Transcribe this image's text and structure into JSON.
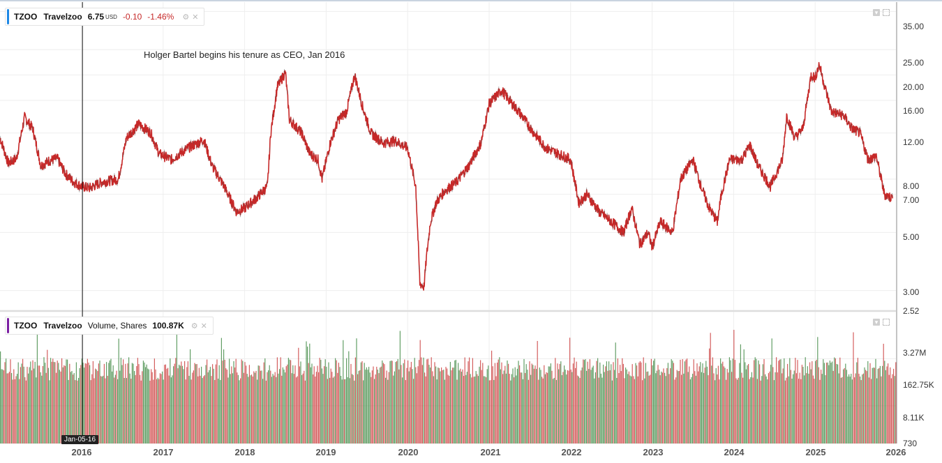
{
  "price_legend": {
    "symbol": "TZOO",
    "name": "Travelzoo",
    "value": "6.75",
    "unit": "USD",
    "change": "-0.10",
    "change_pct": "-1.46%",
    "accent": "#1e88e5"
  },
  "volume_legend": {
    "symbol": "TZOO",
    "name": "Travelzoo",
    "label": "Volume, Shares",
    "value": "100.87K",
    "accent": "#7b1fa2"
  },
  "annotation": "Holger Bartel begins his tenure as CEO, Jan 2016",
  "crosshair_date": "Jan-05-16",
  "colors": {
    "up": "#2e7d32",
    "down": "#c62828",
    "grid": "#eeeeee",
    "axis": "#888888"
  },
  "chart_data": [
    {
      "type": "line",
      "title": "TZOO Travelzoo",
      "y_scale": "log",
      "ylim": [
        2.52,
        38
      ],
      "y_ticks": [
        "35.00",
        "25.00",
        "20.00",
        "16.00",
        "12.00",
        "8.00",
        "7.00",
        "5.00",
        "3.00",
        "2.52"
      ],
      "x_ticks": [
        "2016",
        "2017",
        "2018",
        "2019",
        "2020",
        "2021",
        "2022",
        "2023",
        "2024",
        "2025",
        "2026"
      ],
      "series": [
        {
          "x": [
            2015.0,
            2015.1,
            2015.2,
            2015.3,
            2015.4,
            2015.5,
            2015.6,
            2015.7,
            2015.8,
            2015.9,
            2016.0,
            2016.1,
            2016.25,
            2016.45,
            2016.55,
            2016.7,
            2016.85,
            2016.95,
            2017.1,
            2017.3,
            2017.5,
            2017.6,
            2017.75,
            2017.9,
            2018.0,
            2018.15,
            2018.28,
            2018.32,
            2018.4,
            2018.5,
            2018.55,
            2018.7,
            2018.8,
            2018.9,
            2018.95,
            2019.05,
            2019.15,
            2019.25,
            2019.35,
            2019.45,
            2019.55,
            2019.7,
            2019.85,
            2020.0,
            2020.1,
            2020.15,
            2020.2,
            2020.23,
            2020.28,
            2020.35,
            2020.45,
            2020.6,
            2020.75,
            2020.9,
            2021.0,
            2021.15,
            2021.25,
            2021.4,
            2021.55,
            2021.7,
            2021.85,
            2022.0,
            2022.1,
            2022.2,
            2022.35,
            2022.5,
            2022.65,
            2022.75,
            2022.85,
            2022.95,
            2023.0,
            2023.1,
            2023.25,
            2023.35,
            2023.5,
            2023.6,
            2023.7,
            2023.8,
            2023.85,
            2023.95,
            2024.1,
            2024.2,
            2024.3,
            2024.45,
            2024.6,
            2024.65,
            2024.75,
            2024.85,
            2024.95,
            2025.0,
            2025.05,
            2025.1,
            2025.2,
            2025.35,
            2025.45,
            2025.55,
            2025.65,
            2025.75,
            2025.85,
            2025.95
          ],
          "y": [
            11.5,
            9.2,
            9.6,
            13.8,
            12.5,
            9.0,
            9.4,
            9.6,
            8.4,
            7.8,
            7.5,
            7.4,
            7.8,
            8.0,
            11.5,
            13.0,
            12.0,
            10.0,
            9.5,
            10.5,
            11.3,
            9.0,
            7.5,
            6.0,
            6.2,
            6.8,
            7.5,
            12.0,
            18.0,
            20.5,
            13.5,
            12.0,
            10.0,
            9.5,
            8.0,
            11.0,
            13.5,
            14.5,
            20.0,
            15.0,
            12.0,
            11.0,
            11.2,
            10.5,
            7.5,
            3.2,
            3.1,
            4.0,
            5.5,
            6.5,
            7.2,
            7.8,
            9.0,
            11.0,
            15.5,
            17.5,
            16.0,
            14.0,
            12.0,
            10.5,
            10.0,
            9.5,
            6.5,
            7.0,
            6.0,
            5.5,
            5.0,
            6.2,
            4.5,
            5.0,
            4.4,
            5.5,
            5.0,
            8.0,
            9.5,
            7.5,
            6.2,
            5.5,
            7.0,
            9.5,
            9.5,
            10.8,
            9.0,
            7.5,
            9.5,
            14.0,
            11.5,
            12.5,
            20.0,
            19.5,
            22.0,
            19.0,
            14.5,
            14.0,
            12.5,
            12.0,
            9.5,
            9.8,
            7.0,
            6.75
          ]
        }
      ]
    },
    {
      "type": "bar",
      "title": "TZOO Travelzoo Volume, Shares",
      "y_scale": "log",
      "ylim": [
        730,
        3270000
      ],
      "y_ticks": [
        "3.27M",
        "162.75K",
        "8.11K",
        "730"
      ],
      "x_ticks": [
        "2016",
        "2017",
        "2018",
        "2019",
        "2020",
        "2021",
        "2022",
        "2023",
        "2024",
        "2025",
        "2026"
      ],
      "typical_volume_range": [
        40000,
        180000
      ]
    }
  ]
}
